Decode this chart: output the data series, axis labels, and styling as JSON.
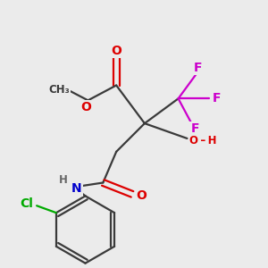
{
  "bg_color": "#ebebeb",
  "bond_color": "#3a3a3a",
  "bond_width": 1.6,
  "colors": {
    "O": "#dd0000",
    "N": "#0000cc",
    "F": "#cc00cc",
    "Cl": "#00aa00",
    "C": "#3a3a3a",
    "H": "#666666"
  },
  "fs": 10,
  "fss": 8.5
}
